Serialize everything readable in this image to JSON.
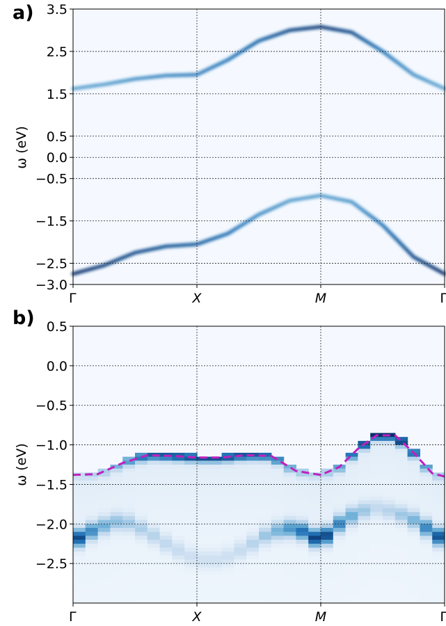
{
  "chart_data": [
    {
      "type": "heatmap",
      "panel_label": "a)",
      "ylabel": "ω (eV)",
      "ylim": [
        -3.0,
        3.5
      ],
      "yticks": [
        3.5,
        2.5,
        1.5,
        0.5,
        0.0,
        -0.5,
        -1.5,
        -2.5,
        -3.0
      ],
      "ytick_labels": [
        "3.5",
        "2.5",
        "1.5",
        "0.5",
        "0.0",
        "−0.5",
        "−1.5",
        "−2.5",
        "−3.0"
      ],
      "xticks": [
        0,
        1,
        2,
        3
      ],
      "xtick_labels": [
        "Γ",
        "X",
        "M",
        "Γ"
      ],
      "grid": true,
      "colormap": "Blues",
      "bands": [
        {
          "x": [
            0,
            0.25,
            0.5,
            0.75,
            1.0,
            1.25,
            1.5,
            1.75,
            2.0,
            2.25,
            2.5,
            2.75,
            3.0
          ],
          "y": [
            1.62,
            1.72,
            1.85,
            1.93,
            1.95,
            2.3,
            2.75,
            3.0,
            3.08,
            2.95,
            2.5,
            1.95,
            1.62
          ],
          "intensity": [
            0.35,
            0.38,
            0.45,
            0.5,
            0.55,
            0.6,
            0.7,
            0.85,
            0.95,
            0.85,
            0.6,
            0.45,
            0.35
          ]
        },
        {
          "x": [
            0,
            0.25,
            0.5,
            0.75,
            1.0,
            1.25,
            1.5,
            1.75,
            2.0,
            2.25,
            2.5,
            2.75,
            3.0
          ],
          "y": [
            -2.75,
            -2.55,
            -2.25,
            -2.1,
            -2.05,
            -1.8,
            -1.35,
            -1.02,
            -0.9,
            -1.05,
            -1.6,
            -2.35,
            -2.75
          ],
          "intensity": [
            1.0,
            0.92,
            0.85,
            0.8,
            0.75,
            0.65,
            0.5,
            0.4,
            0.38,
            0.42,
            0.6,
            0.85,
            1.0
          ]
        }
      ]
    },
    {
      "type": "heatmap",
      "panel_label": "b)",
      "ylabel": "ω (eV)",
      "ylim": [
        -3.0,
        0.5
      ],
      "yticks": [
        0.5,
        0.0,
        -0.5,
        -1.0,
        -1.5,
        -2.0,
        -2.5
      ],
      "ytick_labels": [
        "0.5",
        "0.0",
        "−0.5",
        "−1.0",
        "−1.5",
        "−2.0",
        "−2.5"
      ],
      "xticks": [
        0,
        1,
        2,
        3
      ],
      "xtick_labels": [
        "Γ",
        "X",
        "M",
        "Γ"
      ],
      "grid": true,
      "colormap": "Blues",
      "columns": 30,
      "dashed_line": {
        "color": "#c020c0",
        "x": [
          0.0,
          0.2,
          0.4,
          0.6,
          0.8,
          1.0,
          1.2,
          1.4,
          1.6,
          1.8,
          2.0,
          2.15,
          2.3,
          2.45,
          2.6,
          2.75,
          2.9,
          3.0
        ],
        "y": [
          -1.38,
          -1.37,
          -1.23,
          -1.13,
          -1.14,
          -1.16,
          -1.16,
          -1.13,
          -1.14,
          -1.33,
          -1.38,
          -1.28,
          -1.05,
          -0.88,
          -0.88,
          -1.1,
          -1.36,
          -1.4
        ]
      },
      "main_band": {
        "x": [
          0.0,
          0.2,
          0.4,
          0.6,
          0.8,
          1.0,
          1.2,
          1.4,
          1.6,
          1.8,
          2.0,
          2.15,
          2.3,
          2.45,
          2.6,
          2.75,
          2.9,
          3.0
        ],
        "y": [
          -1.38,
          -1.37,
          -1.23,
          -1.13,
          -1.14,
          -1.16,
          -1.16,
          -1.13,
          -1.14,
          -1.33,
          -1.38,
          -1.28,
          -1.05,
          -0.88,
          -0.88,
          -1.1,
          -1.36,
          -1.4
        ],
        "intensity": [
          0.15,
          0.2,
          0.4,
          0.75,
          0.8,
          0.8,
          0.8,
          0.8,
          0.7,
          0.3,
          0.15,
          0.45,
          0.75,
          0.95,
          0.95,
          0.7,
          0.3,
          0.2
        ]
      },
      "lower_band": {
        "x": [
          0.0,
          0.2,
          0.4,
          0.6,
          0.8,
          1.0,
          1.2,
          1.4,
          1.6,
          1.8,
          2.0,
          2.15,
          2.3,
          2.45,
          2.6,
          2.75,
          2.9,
          3.0
        ],
        "y": [
          -2.22,
          -2.05,
          -1.95,
          -2.1,
          -2.3,
          -2.45,
          -2.45,
          -2.3,
          -2.1,
          -2.05,
          -2.22,
          -2.0,
          -1.85,
          -1.8,
          -1.85,
          -1.95,
          -2.1,
          -2.22
        ],
        "intensity": [
          0.95,
          0.45,
          0.3,
          0.25,
          0.2,
          0.15,
          0.15,
          0.2,
          0.35,
          0.6,
          0.95,
          0.6,
          0.35,
          0.2,
          0.25,
          0.4,
          0.7,
          0.9
        ]
      }
    }
  ]
}
